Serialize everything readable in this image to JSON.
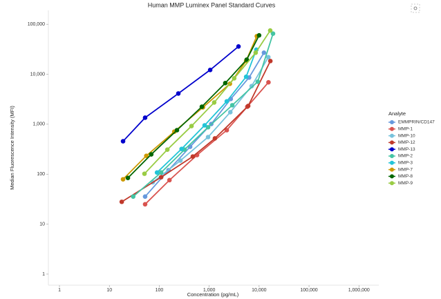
{
  "chart_data": {
    "type": "line",
    "title": "Human MMP Luminex Panel Standard Curves",
    "x_label": "Concentration (pg/mL)",
    "y_label": "Median Fluorescence Intensity (MFI)",
    "legend_title": "Analyte",
    "legend_position": "right",
    "log_x": true,
    "log_y": true,
    "xlim": [
      0.6,
      2500000
    ],
    "ylim": [
      0.6,
      190000
    ],
    "xticks": [
      1,
      10,
      100,
      {
        "value": 1000,
        "label": "1,000"
      },
      {
        "value": 10000,
        "label": "10,000"
      },
      {
        "value": 100000,
        "label": "100,000"
      },
      {
        "value": 1000000,
        "label": "1,000,000"
      }
    ],
    "yticks": [
      1,
      10,
      100,
      {
        "value": 1000,
        "label": "1,000"
      },
      {
        "value": 10000,
        "label": "10,000"
      },
      {
        "value": 100000,
        "label": "100,000"
      }
    ],
    "series": [
      {
        "name": "EMMPRIN/CD147",
        "color": "#6699dd",
        "x": [
          52,
          153,
          415,
          1100,
          2700,
          6300,
          12500
        ],
        "values": [
          35.6,
          120,
          354,
          1010,
          3200,
          8600,
          27000
        ]
      },
      {
        "name": "MMP-1",
        "color": "#d9534f",
        "x": [
          52,
          160,
          570,
          2250,
          5800,
          15400
        ],
        "values": [
          25,
          76,
          241,
          760,
          2240,
          6900
        ]
      },
      {
        "name": "MMP-10",
        "color": "#77c2dc",
        "x": [
          74,
          265,
          950,
          2650,
          7100,
          15300
        ],
        "values": [
          69,
          187,
          553,
          1740,
          5800,
          22000
        ]
      },
      {
        "name": "MMP-12",
        "color": "#c0392b",
        "x": [
          17.7,
          109,
          470,
          1300,
          6050,
          16800
        ],
        "values": [
          28,
          87,
          226,
          520,
          2320,
          18400
        ]
      },
      {
        "name": "MMP-13",
        "color": "#0000cc",
        "x": [
          18.8,
          52,
          241,
          1046,
          3865
        ],
        "values": [
          456,
          1350,
          4120,
          12200,
          36000
        ]
      },
      {
        "name": "MMP-2",
        "color": "#44c4a4",
        "x": [
          30,
          109,
          320,
          950,
          2900,
          9400,
          19000
        ],
        "values": [
          35.6,
          108,
          310,
          870,
          2400,
          7100,
          65000
        ]
      },
      {
        "name": "MMP-3",
        "color": "#22c4d8",
        "x": [
          90,
          280,
          810,
          2250,
          5500,
          8800
        ],
        "values": [
          108,
          320,
          950,
          2870,
          8900,
          31000
        ]
      },
      {
        "name": "MMP-7",
        "color": "#cc9900",
        "x": [
          18.8,
          55,
          200,
          750,
          2600,
          5500,
          9000
        ],
        "values": [
          79,
          233,
          710,
          2180,
          6440,
          18600,
          57800
        ]
      },
      {
        "name": "MMP-8",
        "color": "#006600",
        "x": [
          23.5,
          69,
          226,
          713,
          2100,
          5650,
          10000
        ],
        "values": [
          84,
          249,
          760,
          2240,
          6650,
          19600,
          60000
        ]
      },
      {
        "name": "MMP-9",
        "color": "#99cc44",
        "x": [
          50.5,
          145,
          442,
          1260,
          3170,
          8530,
          16700
        ],
        "values": [
          102,
          310,
          918,
          2720,
          8300,
          27000,
          75000
        ]
      }
    ]
  }
}
